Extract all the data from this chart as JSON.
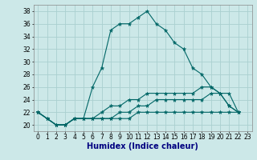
{
  "xlabel": "Humidex (Indice chaleur)",
  "ylabel": "",
  "bg_color": "#cce8e8",
  "grid_color": "#aad0d0",
  "line_color": "#006666",
  "xlim_min": -0.5,
  "xlim_max": 23.5,
  "ylim_min": 19,
  "ylim_max": 39,
  "yticks": [
    20,
    22,
    24,
    26,
    28,
    30,
    32,
    34,
    36,
    38
  ],
  "xticks": [
    0,
    1,
    2,
    3,
    4,
    5,
    6,
    7,
    8,
    9,
    10,
    11,
    12,
    13,
    14,
    15,
    16,
    17,
    18,
    19,
    20,
    21,
    22,
    23
  ],
  "x": [
    0,
    1,
    2,
    3,
    4,
    5,
    6,
    7,
    8,
    9,
    10,
    11,
    12,
    13,
    14,
    15,
    16,
    17,
    18,
    19,
    20,
    21,
    22
  ],
  "series1": [
    22,
    21,
    20,
    20,
    21,
    21,
    26,
    29,
    35,
    36,
    36,
    37,
    38,
    36,
    35,
    33,
    32,
    29,
    28,
    26,
    25,
    25,
    22
  ],
  "series2": [
    22,
    21,
    20,
    20,
    21,
    21,
    21,
    21,
    21,
    21,
    21,
    22,
    22,
    22,
    22,
    22,
    22,
    22,
    22,
    22,
    22,
    22,
    22
  ],
  "series3": [
    22,
    21,
    20,
    20,
    21,
    21,
    21,
    21,
    21,
    22,
    22,
    23,
    23,
    24,
    24,
    24,
    24,
    24,
    24,
    25,
    25,
    23,
    22
  ],
  "series4": [
    22,
    21,
    20,
    20,
    21,
    21,
    21,
    22,
    23,
    23,
    24,
    24,
    25,
    25,
    25,
    25,
    25,
    25,
    26,
    26,
    25,
    23,
    22
  ],
  "tick_fontsize": 5.5,
  "xlabel_fontsize": 7,
  "xlabel_color": "#000080"
}
